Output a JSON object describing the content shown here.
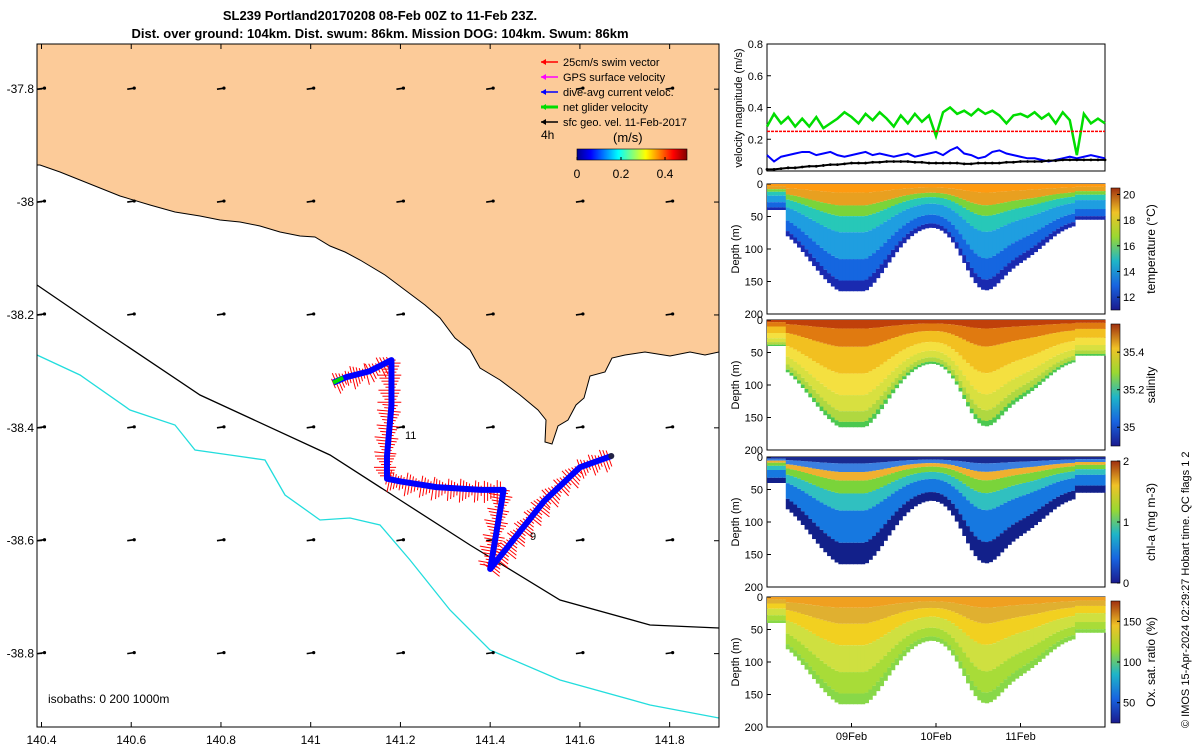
{
  "header": {
    "title_line1": "SL239 Portland20170208 08-Feb 00Z to 11-Feb 23Z.",
    "title_line2": "Dist. over ground: 104km. Dist. swum: 86km. Mission DOG: 104km. Swum: 86km"
  },
  "credit": "© IMOS 15-Apr-2024 02:29:27 Hobart time. QC flags 1  2",
  "colors": {
    "land": "#FCCB99",
    "swim": "#ff0000",
    "gps": "#ff00ff",
    "dive_avg": "#0000ff",
    "net": "#00dd00",
    "geo": "#000000",
    "isobath_200": "#000000",
    "isobath_1000": "#22dddd"
  },
  "chart_data": [
    {
      "type": "scatter",
      "name": "map",
      "xticks": [
        "140.4",
        "140.6",
        "140.8",
        "141",
        "141.2",
        "141.4",
        "141.6",
        "141.8"
      ],
      "yticks": [
        "-37.8",
        "-38",
        "-38.2",
        "-38.4",
        "-38.6",
        "-38.8"
      ],
      "xlim": [
        140.39,
        141.91
      ],
      "ylim": [
        -38.93,
        -37.72
      ],
      "legend": [
        {
          "label": "25cm/s swim vector",
          "color": "#ff0000"
        },
        {
          "label": "GPS surface velocity",
          "color": "#ff00ff"
        },
        {
          "label": "dive-avg current veloc.",
          "color": "#0000ff"
        },
        {
          "label": "net glider velocity",
          "color": "#00dd00"
        },
        {
          "label": "sfc geo. vel. 11-Feb-2017",
          "color": "#000000"
        }
      ],
      "time_label": "4h",
      "colorbar": {
        "label": "(m/s)",
        "ticks": [
          "0",
          "0.2",
          "0.4"
        ],
        "range": [
          0,
          0.5
        ]
      },
      "isobath_label": "isobaths: 0   200  1000m",
      "annotations": [
        "11",
        "9"
      ],
      "track": [
        [
          141.05,
          -38.32
        ],
        [
          141.08,
          -38.31
        ],
        [
          141.13,
          -38.3
        ],
        [
          141.18,
          -38.28
        ],
        [
          141.18,
          -38.36
        ],
        [
          141.17,
          -38.45
        ],
        [
          141.17,
          -38.49
        ],
        [
          141.2,
          -38.495
        ],
        [
          141.28,
          -38.505
        ],
        [
          141.38,
          -38.51
        ],
        [
          141.43,
          -38.51
        ],
        [
          141.4,
          -38.65
        ],
        [
          141.45,
          -38.6
        ],
        [
          141.52,
          -38.53
        ],
        [
          141.6,
          -38.47
        ],
        [
          141.67,
          -38.45
        ]
      ]
    },
    {
      "type": "line",
      "name": "velocity",
      "ylabel": "velocity magnitude (m/s)",
      "ylim": [
        0,
        0.8
      ],
      "yticks": [
        "0",
        "0.2",
        "0.4",
        "0.6",
        "0.8"
      ],
      "x": [
        0,
        2,
        4,
        6,
        8,
        10,
        12,
        14,
        16,
        18,
        20,
        22,
        24,
        26,
        28,
        30,
        32,
        34,
        36,
        38,
        40,
        42,
        44,
        46,
        48,
        50,
        52,
        54,
        56,
        58,
        60,
        62,
        64,
        66,
        68,
        70,
        72,
        74,
        76,
        78,
        80,
        82,
        84,
        86,
        88,
        90,
        92,
        94,
        96
      ],
      "series": [
        {
          "name": "net glider velocity",
          "color": "#00dd00",
          "values": [
            0.28,
            0.36,
            0.3,
            0.34,
            0.28,
            0.33,
            0.28,
            0.34,
            0.27,
            0.3,
            0.33,
            0.37,
            0.34,
            0.3,
            0.36,
            0.32,
            0.37,
            0.33,
            0.28,
            0.35,
            0.3,
            0.36,
            0.31,
            0.35,
            0.22,
            0.37,
            0.4,
            0.36,
            0.38,
            0.35,
            0.39,
            0.36,
            0.38,
            0.35,
            0.3,
            0.35,
            0.36,
            0.34,
            0.37,
            0.33,
            0.36,
            0.3,
            0.37,
            0.32,
            0.1,
            0.36,
            0.3,
            0.33,
            0.3
          ]
        },
        {
          "name": "25cm/s swim vector",
          "color": "#ff0000",
          "values": [
            0.25,
            0.25,
            0.25,
            0.25,
            0.25,
            0.25,
            0.25,
            0.25,
            0.25,
            0.25,
            0.25,
            0.25,
            0.25,
            0.25,
            0.25,
            0.25,
            0.25,
            0.25,
            0.25,
            0.25,
            0.25,
            0.25,
            0.25,
            0.25,
            0.25,
            0.25,
            0.25,
            0.25,
            0.25,
            0.25,
            0.25,
            0.25,
            0.25,
            0.25,
            0.25,
            0.25,
            0.25,
            0.25,
            0.25,
            0.25,
            0.25,
            0.25,
            0.25,
            0.25,
            0.25,
            0.25,
            0.25,
            0.25,
            0.25
          ]
        },
        {
          "name": "dive-avg current veloc.",
          "color": "#0000ff",
          "values": [
            0.1,
            0.06,
            0.09,
            0.1,
            0.11,
            0.12,
            0.12,
            0.1,
            0.11,
            0.12,
            0.1,
            0.09,
            0.1,
            0.11,
            0.12,
            0.1,
            0.11,
            0.1,
            0.09,
            0.1,
            0.11,
            0.09,
            0.1,
            0.11,
            0.12,
            0.1,
            0.13,
            0.15,
            0.11,
            0.1,
            0.08,
            0.09,
            0.12,
            0.13,
            0.11,
            0.1,
            0.09,
            0.08,
            0.08,
            0.07,
            0.06,
            0.07,
            0.08,
            0.09,
            0.08,
            0.09,
            0.1,
            0.09,
            0.08
          ]
        },
        {
          "name": "sfc geo. vel. 11-Feb-2017",
          "color": "#000000",
          "values": [
            0.01,
            0.01,
            0.015,
            0.02,
            0.02,
            0.025,
            0.03,
            0.03,
            0.035,
            0.04,
            0.04,
            0.045,
            0.05,
            0.05,
            0.05,
            0.055,
            0.055,
            0.06,
            0.06,
            0.06,
            0.06,
            0.055,
            0.055,
            0.05,
            0.05,
            0.05,
            0.05,
            0.05,
            0.045,
            0.045,
            0.05,
            0.05,
            0.05,
            0.05,
            0.055,
            0.055,
            0.06,
            0.06,
            0.06,
            0.06,
            0.065,
            0.065,
            0.07,
            0.07,
            0.07,
            0.07,
            0.07,
            0.07,
            0.07
          ]
        }
      ]
    },
    {
      "type": "heatmap",
      "name": "temperature",
      "ylabel": "Depth (m)",
      "cbar_label": "temperature (°C)",
      "cbar_ticks": [
        "12",
        "14",
        "16",
        "18",
        "20"
      ],
      "cbar_range": [
        11,
        20.5
      ],
      "yticks": [
        "0",
        "50",
        "100",
        "150",
        "200"
      ],
      "ylim": [
        0,
        200
      ]
    },
    {
      "type": "heatmap",
      "name": "salinity",
      "ylabel": "Depth (m)",
      "cbar_label": "salinity",
      "cbar_ticks": [
        "35",
        "35.2",
        "35.4"
      ],
      "cbar_range": [
        34.9,
        35.55
      ],
      "yticks": [
        "0",
        "50",
        "100",
        "150",
        "200"
      ],
      "ylim": [
        0,
        200
      ]
    },
    {
      "type": "heatmap",
      "name": "chl-a",
      "ylabel": "Depth (m)",
      "cbar_label": "chl-a (mg m-3)",
      "cbar_ticks": [
        "0",
        "1",
        "2"
      ],
      "cbar_range": [
        0,
        2
      ],
      "yticks": [
        "0",
        "50",
        "100",
        "150",
        "200"
      ],
      "ylim": [
        0,
        200
      ]
    },
    {
      "type": "heatmap",
      "name": "oxygen",
      "ylabel": "Depth (m)",
      "cbar_label": "Ox. sat. ratio (%)",
      "cbar_ticks": [
        "50",
        "100",
        "150"
      ],
      "cbar_range": [
        25,
        175
      ],
      "yticks": [
        "0",
        "50",
        "100",
        "150",
        "200"
      ],
      "ylim": [
        0,
        200
      ],
      "xticks": [
        "09Feb",
        "10Feb",
        "11Feb"
      ]
    }
  ]
}
